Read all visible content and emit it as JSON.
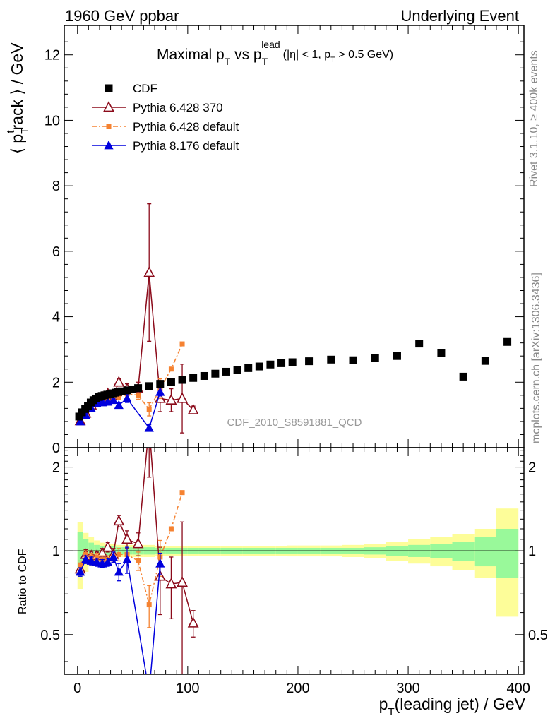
{
  "header": {
    "left": "1960 GeV ppbar",
    "right": "Underlying Event"
  },
  "side": {
    "rivet": "Rivet 3.1.10, ≥ 400k events",
    "mcplots": "mcplots.cern.ch [arXiv:1306.3436]"
  },
  "chart_data": {
    "type": "scatter",
    "title": {
      "main": "Maximal p",
      "sub1": "T",
      "mid": " vs p",
      "sub2": "T",
      "sup2": "lead",
      "cond_a": "(|η| < 1, p",
      "cond_sub": "T",
      "cond_b": " > 0.5 GeV)"
    },
    "ylabel": {
      "a": "⟨ p",
      "sub": "T",
      "sup": "t",
      "b": "rack ⟩ / GeV"
    },
    "xlabel": {
      "a": "p",
      "sub": "T",
      "b": "(leading jet) / GeV"
    },
    "ratio_ylabel": "Ratio to CDF",
    "watermark": "CDF_2010_S8591881_QCD",
    "xlim": [
      -12,
      405
    ],
    "ylim": [
      0,
      12.9
    ],
    "ratio_ylim": [
      0.36,
      2.35
    ],
    "x_ticks": [
      0,
      100,
      200,
      300,
      400
    ],
    "y_ticks": [
      0,
      2,
      4,
      6,
      8,
      10,
      12
    ],
    "ratio_ticks": [
      0.5,
      1,
      2
    ],
    "series": [
      {
        "name": "CDF",
        "color": "#000000",
        "marker": "square",
        "line": "none",
        "x": [
          1.5,
          4,
          7,
          9.5,
          12,
          14.5,
          17,
          19.5,
          22,
          24.5,
          27,
          29.5,
          32,
          34.5,
          37,
          40,
          45,
          50,
          55,
          65,
          75,
          85,
          95,
          105,
          115,
          125,
          135,
          145,
          155,
          165,
          175,
          185,
          195,
          210,
          230,
          250,
          270,
          290,
          310,
          330,
          350,
          370,
          390
        ],
        "y": [
          0.95,
          1.08,
          1.18,
          1.28,
          1.38,
          1.45,
          1.5,
          1.55,
          1.58,
          1.6,
          1.62,
          1.64,
          1.66,
          1.68,
          1.7,
          1.72,
          1.75,
          1.78,
          1.82,
          1.88,
          1.95,
          2.01,
          2.07,
          2.13,
          2.19,
          2.26,
          2.32,
          2.37,
          2.43,
          2.48,
          2.54,
          2.58,
          2.61,
          2.64,
          2.69,
          2.67,
          2.75,
          2.8,
          3.18,
          2.88,
          2.17,
          2.65,
          3.23
        ]
      },
      {
        "name": "Pythia 6.428 370",
        "color": "#8b0a1a",
        "marker": "open-triangle",
        "line": "solid",
        "x": [
          2.5,
          7.5,
          12.5,
          17.5,
          22.5,
          27.5,
          32.5,
          37.5,
          45,
          55,
          65,
          75,
          85,
          95,
          105
        ],
        "y": [
          0.82,
          1.05,
          1.3,
          1.45,
          1.55,
          1.65,
          1.6,
          2.0,
          1.8,
          1.8,
          5.35,
          1.5,
          1.45,
          1.5,
          1.15
        ],
        "yerr": [
          0.05,
          0.05,
          0.05,
          0.05,
          0.06,
          0.06,
          0.08,
          0.1,
          0.15,
          0.2,
          2.1,
          0.4,
          0.35,
          1.05,
          0.12
        ],
        "ratio": [
          0.86,
          0.97,
          0.96,
          0.96,
          0.98,
          1.03,
          0.97,
          1.28,
          1.1,
          1.06,
          2.84,
          0.81,
          0.76,
          0.77,
          0.55
        ],
        "ratio_err": [
          0.04,
          0.04,
          0.03,
          0.03,
          0.04,
          0.04,
          0.05,
          0.06,
          0.08,
          0.1,
          1.0,
          0.22,
          0.19,
          0.5,
          0.06
        ]
      },
      {
        "name": "Pythia 6.428 default",
        "color": "#f58231",
        "marker": "square",
        "line": "dashdot",
        "x": [
          2.5,
          7.5,
          12.5,
          17.5,
          22.5,
          27.5,
          32.5,
          37.5,
          45,
          55,
          65,
          75,
          85,
          95
        ],
        "y": [
          0.85,
          1.05,
          1.25,
          1.4,
          1.45,
          1.5,
          1.55,
          1.55,
          1.65,
          1.6,
          1.17,
          1.8,
          2.4,
          3.17
        ],
        "yerr": [
          0.04,
          0.04,
          0.04,
          0.05,
          0.05,
          0.05,
          0.06,
          0.07,
          0.1,
          0.12,
          0.2,
          0.3,
          0,
          0
        ],
        "ratio": [
          0.89,
          0.97,
          0.95,
          0.95,
          0.93,
          0.93,
          0.95,
          0.97,
          0.97,
          0.92,
          0.64,
          0.95,
          1.2,
          1.62
        ],
        "ratio_err": [
          0.03,
          0.03,
          0.03,
          0.03,
          0.03,
          0.03,
          0.04,
          0.05,
          0.06,
          0.07,
          0.11,
          0.14,
          0,
          0
        ]
      },
      {
        "name": "Pythia 8.176 default",
        "color": "#0000dd",
        "marker": "triangle",
        "line": "solid",
        "x": [
          2.5,
          7.5,
          12.5,
          17.5,
          22.5,
          27.5,
          32.5,
          37.5,
          45,
          65,
          75
        ],
        "y": [
          0.8,
          1.0,
          1.2,
          1.35,
          1.38,
          1.4,
          1.45,
          1.3,
          1.5,
          0.6,
          1.7
        ],
        "yerr": [
          0.04,
          0.04,
          0.04,
          0.05,
          0.05,
          0.05,
          0.06,
          0.08,
          0.12,
          0.1,
          0.12
        ],
        "ratio": [
          0.84,
          0.93,
          0.92,
          0.91,
          0.9,
          0.91,
          0.95,
          0.84,
          0.93,
          0.31,
          0.9
        ],
        "ratio_err": [
          0.03,
          0.03,
          0.03,
          0.03,
          0.03,
          0.03,
          0.04,
          0.06,
          0.1,
          0.05,
          0.08
        ]
      }
    ],
    "uncertainty_bands": {
      "inner_color": "#99f99a",
      "outer_color": "#fdfd99",
      "edges": [
        0,
        5,
        10,
        15,
        20,
        25,
        30,
        35,
        40,
        50,
        60,
        70,
        80,
        90,
        100,
        110,
        120,
        130,
        140,
        150,
        160,
        170,
        180,
        190,
        200,
        220,
        240,
        260,
        280,
        300,
        320,
        340,
        360,
        380,
        400
      ],
      "inner": [
        0.17,
        0.1,
        0.07,
        0.05,
        0.04,
        0.04,
        0.04,
        0.03,
        0.03,
        0.03,
        0.03,
        0.025,
        0.025,
        0.025,
        0.025,
        0.025,
        0.025,
        0.025,
        0.025,
        0.025,
        0.025,
        0.025,
        0.025,
        0.025,
        0.025,
        0.025,
        0.025,
        0.03,
        0.04,
        0.05,
        0.06,
        0.08,
        0.12,
        0.2
      ],
      "outer": [
        0.27,
        0.16,
        0.12,
        0.09,
        0.07,
        0.06,
        0.06,
        0.05,
        0.05,
        0.05,
        0.05,
        0.04,
        0.04,
        0.04,
        0.04,
        0.04,
        0.04,
        0.04,
        0.04,
        0.04,
        0.04,
        0.04,
        0.04,
        0.045,
        0.045,
        0.045,
        0.05,
        0.06,
        0.08,
        0.1,
        0.12,
        0.15,
        0.2,
        0.42
      ]
    }
  }
}
